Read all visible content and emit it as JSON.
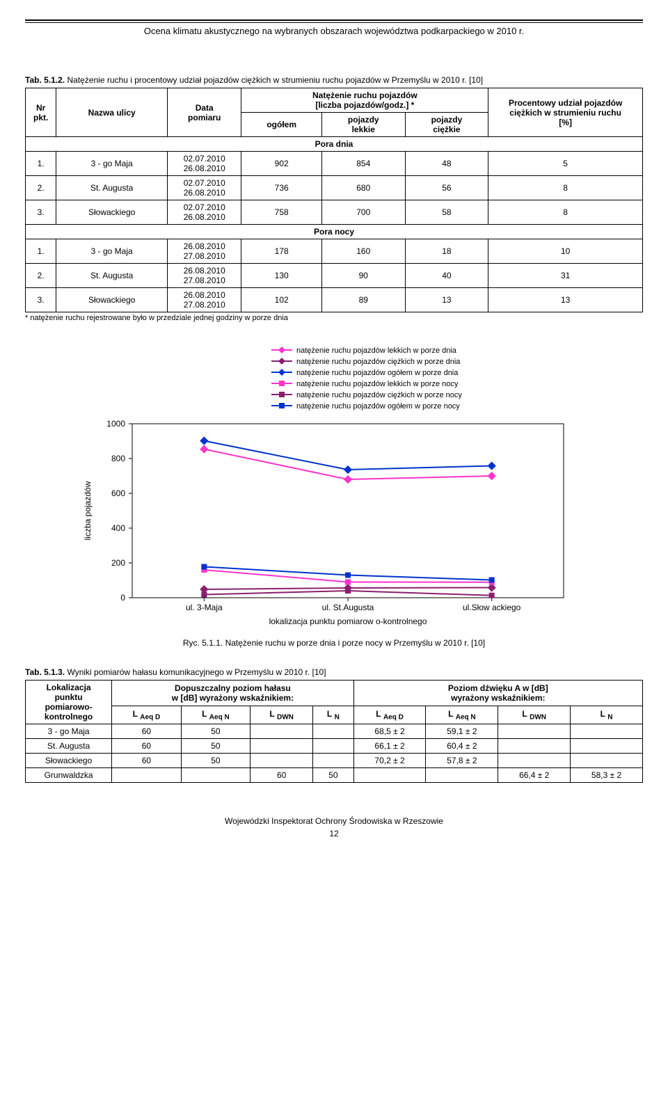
{
  "header": {
    "title": "Ocena klimatu akustycznego na wybranych obszarach województwa podkarpackiego w 2010 r."
  },
  "footer": {
    "org": "Wojewódzki Inspektorat Ochrony Środowiska w Rzeszowie",
    "page": "12"
  },
  "table1": {
    "caption_prefix": "Tab. 5.1.2.",
    "caption_rest": " Natężenie ruchu i procentowy udział pojazdów ciężkich w strumieniu ruchu pojazdów w Przemyślu w 2010 r. [10]",
    "col_nr": "Nr\npkt.",
    "col_nazwa": "Nazwa ulicy",
    "col_data": "Data\npomiaru",
    "col_group": "Natężenie ruchu pojazdów\n[liczba pojazdów/godz.] *",
    "col_ogolem": "ogółem",
    "col_lekkie": "pojazdy\nlekkie",
    "col_ciezkie": "pojazdy\nciężkie",
    "col_procent": "Procentowy udział pojazdów\nciężkich w strumieniu ruchu\n[%]",
    "section_day": "Pora dnia",
    "section_night": "Pora nocy",
    "rows_day": [
      {
        "nr": "1.",
        "name": "3 - go Maja",
        "date1": "02.07.2010",
        "date2": "26.08.2010",
        "og": "902",
        "lek": "854",
        "cie": "48",
        "pct": "5"
      },
      {
        "nr": "2.",
        "name": "St. Augusta",
        "date1": "02.07.2010",
        "date2": "26.08.2010",
        "og": "736",
        "lek": "680",
        "cie": "56",
        "pct": "8"
      },
      {
        "nr": "3.",
        "name": "Słowackiego",
        "date1": "02.07.2010",
        "date2": "26.08.2010",
        "og": "758",
        "lek": "700",
        "cie": "58",
        "pct": "8"
      }
    ],
    "rows_night": [
      {
        "nr": "1.",
        "name": "3 - go Maja",
        "date1": "26.08.2010",
        "date2": "27.08.2010",
        "og": "178",
        "lek": "160",
        "cie": "18",
        "pct": "10"
      },
      {
        "nr": "2.",
        "name": "St. Augusta",
        "date1": "26.08.2010",
        "date2": "27.08.2010",
        "og": "130",
        "lek": "90",
        "cie": "40",
        "pct": "31"
      },
      {
        "nr": "3.",
        "name": "Słowackiego",
        "date1": "26.08.2010",
        "date2": "27.08.2010",
        "og": "102",
        "lek": "89",
        "cie": "13",
        "pct": "13"
      }
    ],
    "footnote": "* natężenie ruchu rejestrowane było w przedziale jednej godziny w porze dnia"
  },
  "chart": {
    "type": "line",
    "categories": [
      "ul. 3-Maja",
      "ul. St.Augusta",
      "ul.Słow ackiego"
    ],
    "series": [
      {
        "key": "lekkie_dnia",
        "label": "natężenie ruchu pojazdów lekkich w  porze dnia",
        "color": "#ff33cc",
        "marker": "diamond",
        "values": [
          854,
          680,
          700
        ]
      },
      {
        "key": "ciezkie_dnia",
        "label": "natężenie ruchu pojazdów ciężkich w  porze dnia",
        "color": "#8a1f6f",
        "marker": "diamond",
        "values": [
          48,
          56,
          58
        ]
      },
      {
        "key": "ogolem_dnia",
        "label": "natężenie ruchu pojazdów ogółem w  porze dnia",
        "color": "#0033cc",
        "marker": "diamond",
        "values": [
          902,
          736,
          758
        ]
      },
      {
        "key": "lekkie_nocy",
        "label": "natężenie ruchu pojazdów lekkich w  porze nocy",
        "color": "#ff33cc",
        "marker": "square",
        "values": [
          160,
          90,
          89
        ]
      },
      {
        "key": "ciezkie_nocy",
        "label": "natężenie ruchu pojazdów ciężkich w  porze nocy",
        "color": "#8a1f6f",
        "marker": "square",
        "values": [
          18,
          40,
          13
        ]
      },
      {
        "key": "ogolem_nocy",
        "label": "natężenie ruchu pojazdów ogółem w  porze nocy",
        "color": "#0033cc",
        "marker": "square",
        "values": [
          178,
          130,
          102
        ]
      }
    ],
    "ylabel": "liczba pojazdów",
    "xlabel": "lokalizacja punktu pomiarow o-kontrolnego",
    "ylim": [
      0,
      1000
    ],
    "ytick_step": 200,
    "yticks": [
      "0",
      "200",
      "400",
      "600",
      "800",
      "1000"
    ],
    "plot_bg": "#ffffff",
    "axis_color": "#000000",
    "marker_size": 8,
    "line_width": 2,
    "caption": "Ryc. 5.1.1. Natężenie ruchu w porze dnia i porze nocy w Przemyślu w 2010 r. [10]"
  },
  "table2": {
    "caption_prefix": "Tab. 5.1.3.",
    "caption_rest": " Wyniki pomiarów hałasu komunikacyjnego w Przemyślu w 2010 r. [10]",
    "col_loc": "Lokalizacja\npunktu\npomiarowo-\nkontrolnego",
    "group1": "Dopuszczalny poziom hałasu\nw [dB] wyrażony wskaźnikiem:",
    "group2": "Poziom dźwięku A w  [dB]\nwyrażony wskaźnikiem:",
    "sub_cols": [
      "L Aeq D",
      "L Aeq N",
      "L DWN",
      "L N",
      "L Aeq D",
      "L Aeq N",
      "L DWN",
      "L N"
    ],
    "rows": [
      {
        "loc": "3 - go Maja",
        "v": [
          "60",
          "50",
          "",
          "",
          "68,5 ± 2",
          "59,1 ± 2",
          "",
          ""
        ]
      },
      {
        "loc": "St. Augusta",
        "v": [
          "60",
          "50",
          "",
          "",
          "66,1 ± 2",
          "60,4 ± 2",
          "",
          ""
        ]
      },
      {
        "loc": "Słowackiego",
        "v": [
          "60",
          "50",
          "",
          "",
          "70,2 ± 2",
          "57,8 ± 2",
          "",
          ""
        ]
      },
      {
        "loc": "Grunwaldzka",
        "v": [
          "",
          "",
          "60",
          "50",
          "",
          "",
          "66,4 ± 2",
          "58,3 ± 2"
        ]
      }
    ]
  }
}
